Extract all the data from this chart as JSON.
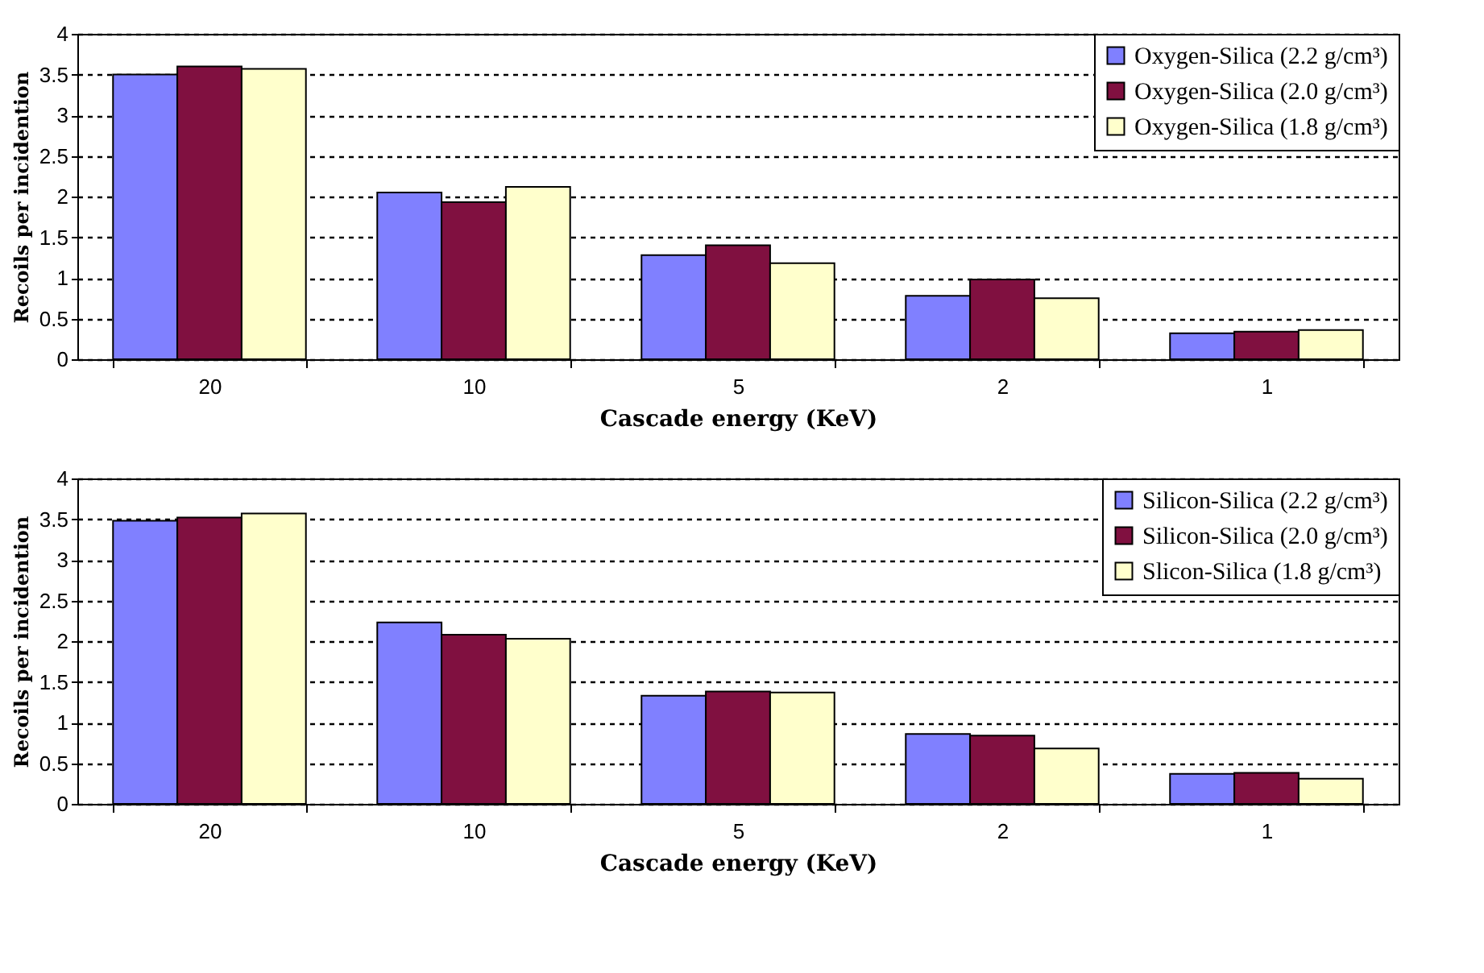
{
  "chart_data": [
    {
      "type": "bar",
      "xlabel": "Cascade energy (KeV)",
      "ylabel": "Recoils per incidention",
      "categories": [
        "20",
        "10",
        "5",
        "2",
        "1"
      ],
      "ylim": [
        0,
        4
      ],
      "yticks": [
        0,
        0.5,
        1,
        1.5,
        2,
        2.5,
        3,
        3.5,
        4
      ],
      "grid": "y",
      "legend": "top right",
      "series": [
        {
          "name": "Oxygen-Silica (2.2 g/cm³)",
          "color": "#8080ff",
          "values": [
            3.5,
            2.05,
            1.28,
            0.78,
            0.32
          ]
        },
        {
          "name": "Oxygen-Silica (2.0 g/cm³)",
          "color": "#801040",
          "values": [
            3.6,
            1.93,
            1.4,
            0.98,
            0.34
          ]
        },
        {
          "name": "Oxygen-Silica (1.8 g/cm³)",
          "color": "#ffffcc",
          "values": [
            3.57,
            2.12,
            1.18,
            0.75,
            0.36
          ]
        }
      ]
    },
    {
      "type": "bar",
      "xlabel": "Cascade energy (KeV)",
      "ylabel": "Recoils per incidention",
      "categories": [
        "20",
        "10",
        "5",
        "2",
        "1"
      ],
      "ylim": [
        0,
        4
      ],
      "yticks": [
        0,
        0.5,
        1,
        1.5,
        2,
        2.5,
        3,
        3.5,
        4
      ],
      "grid": "y",
      "legend": "top right",
      "series": [
        {
          "name": "Silicon-Silica (2.2 g/cm³)",
          "color": "#8080ff",
          "values": [
            3.48,
            2.23,
            1.33,
            0.86,
            0.37
          ]
        },
        {
          "name": "Silicon-Silica (2.0 g/cm³)",
          "color": "#801040",
          "values": [
            3.52,
            2.08,
            1.38,
            0.84,
            0.38
          ]
        },
        {
          "name": "Slicon-Silica (1.8 g/cm³)",
          "color": "#ffffcc",
          "values": [
            3.57,
            2.03,
            1.37,
            0.68,
            0.31
          ]
        }
      ]
    }
  ]
}
